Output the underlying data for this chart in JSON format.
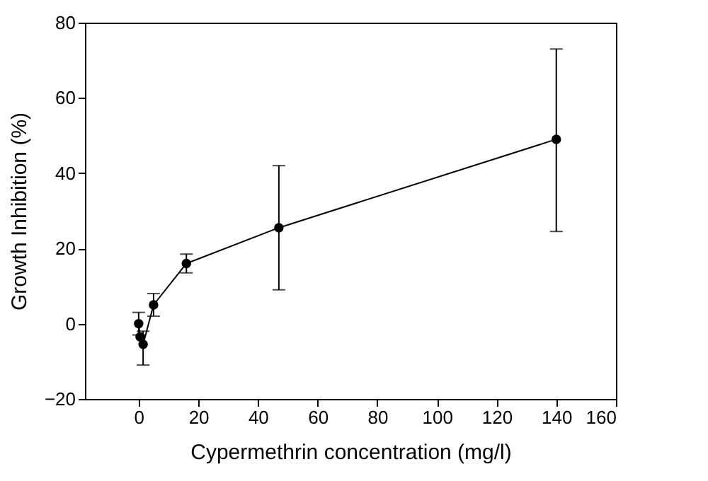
{
  "chart_data": {
    "type": "line",
    "xlabel": "Cypermethrin concentration (mg/l)",
    "ylabel": "Growth Inhibition (%)",
    "x": [
      0,
      0.5,
      1.5,
      5,
      16,
      47,
      140
    ],
    "series": [
      {
        "color": "#000000",
        "values": [
          0,
          -3.5,
          -5.5,
          5,
          16,
          25.5,
          49
        ],
        "errors": [
          [
            -3,
            3
          ],
          null,
          [
            -11,
            -2
          ],
          [
            2,
            8
          ],
          [
            13.5,
            18.5
          ],
          [
            9,
            42
          ],
          [
            24.5,
            73
          ]
        ]
      }
    ],
    "xlim": [
      -18,
      160
    ],
    "xticks": [
      0,
      20,
      40,
      60,
      80,
      100,
      120,
      140,
      160
    ],
    "ylim": [
      -20,
      80
    ],
    "yticks": [
      -20,
      0,
      20,
      40,
      60,
      80
    ],
    "marker": "circle",
    "line_style": "solid",
    "grid": false,
    "legend": false
  }
}
